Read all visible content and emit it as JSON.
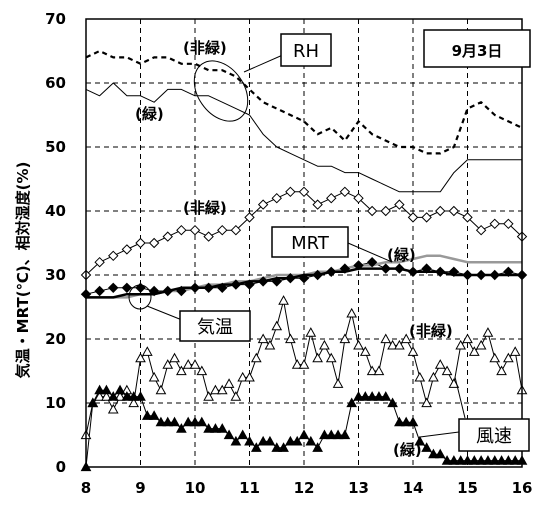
{
  "chart_data": {
    "type": "line",
    "title": "",
    "date_label": "9月3日",
    "xlabel": "",
    "ylabel": "気温・MRT(℃)、相対湿度(%)",
    "xlim": [
      8,
      16
    ],
    "ylim": [
      0,
      70
    ],
    "x_ticks": [
      8,
      9,
      10,
      11,
      12,
      13,
      14,
      15,
      16
    ],
    "y_ticks": [
      0,
      10,
      20,
      30,
      40,
      50,
      60,
      70
    ],
    "grid": "dashed",
    "callouts": {
      "rh": "RH",
      "mrt": "MRT",
      "air_temp": "気温",
      "wind": "風速"
    },
    "labels": {
      "non_green": "(非緑)",
      "green": "(緑)"
    },
    "series": [
      {
        "key": "rh_nongreen",
        "style": "dashed",
        "x": [
          8,
          8.25,
          8.5,
          8.75,
          9,
          9.25,
          9.5,
          9.75,
          10,
          10.25,
          10.5,
          10.75,
          11,
          11.25,
          11.5,
          11.75,
          12,
          12.25,
          12.5,
          12.75,
          13,
          13.25,
          13.5,
          13.75,
          14,
          14.25,
          14.5,
          14.75,
          15,
          15.25,
          15.5,
          15.75,
          16
        ],
        "y": [
          64,
          65,
          64,
          64,
          63,
          64,
          64,
          63,
          63,
          62,
          62,
          61,
          59,
          57,
          56,
          55,
          54,
          52,
          53,
          51,
          54,
          52,
          51,
          50,
          50,
          49,
          49,
          50,
          56,
          57,
          55,
          54,
          53
        ]
      },
      {
        "key": "rh_green",
        "style": "solid",
        "x": [
          8,
          8.25,
          8.5,
          8.75,
          9,
          9.25,
          9.5,
          9.75,
          10,
          10.25,
          10.5,
          10.75,
          11,
          11.25,
          11.5,
          11.75,
          12,
          12.25,
          12.5,
          12.75,
          13,
          13.25,
          13.5,
          13.75,
          14,
          14.25,
          14.5,
          14.75,
          15,
          15.25,
          15.5,
          15.75,
          16
        ],
        "y": [
          59,
          58,
          60,
          58,
          58,
          57,
          59,
          59,
          58,
          58,
          57,
          56,
          55,
          52,
          50,
          49,
          48,
          47,
          47,
          46,
          46,
          45,
          44,
          43,
          43,
          43,
          43,
          46,
          48,
          48,
          48,
          48,
          48
        ]
      },
      {
        "key": "mrt_nongreen",
        "style": "line-open-diamond",
        "x": [
          8,
          8.25,
          8.5,
          8.75,
          9,
          9.25,
          9.5,
          9.75,
          10,
          10.25,
          10.5,
          10.75,
          11,
          11.25,
          11.5,
          11.75,
          12,
          12.25,
          12.5,
          12.75,
          13,
          13.25,
          13.5,
          13.75,
          14,
          14.25,
          14.5,
          14.75,
          15,
          15.25,
          15.5,
          15.75,
          16
        ],
        "y": [
          30,
          32,
          33,
          34,
          35,
          35,
          36,
          37,
          37,
          36,
          37,
          37,
          39,
          41,
          42,
          43,
          43,
          41,
          42,
          43,
          42,
          40,
          40,
          41,
          39,
          39,
          40,
          40,
          39,
          37,
          38,
          38,
          36
        ]
      },
      {
        "key": "mrt_green",
        "style": "line-filled-diamond",
        "x": [
          8,
          8.25,
          8.5,
          8.75,
          9,
          9.25,
          9.5,
          9.75,
          10,
          10.25,
          10.5,
          10.75,
          11,
          11.25,
          11.5,
          11.75,
          12,
          12.25,
          12.5,
          12.75,
          13,
          13.25,
          13.5,
          13.75,
          14,
          14.25,
          14.5,
          14.75,
          15,
          15.25,
          15.5,
          15.75,
          16
        ],
        "y": [
          27,
          27.5,
          28,
          28,
          28,
          27.5,
          27.5,
          27.5,
          28,
          28,
          28,
          28.5,
          28.5,
          29,
          29,
          29.5,
          29.5,
          30,
          30.5,
          31,
          31.5,
          32,
          31,
          31,
          30.5,
          31,
          30.5,
          30.5,
          30,
          30,
          30,
          30.5,
          30
        ]
      },
      {
        "key": "air_temp_nongreen",
        "style": "gray",
        "x": [
          8,
          8.25,
          8.5,
          8.75,
          9,
          9.25,
          9.5,
          9.75,
          10,
          10.25,
          10.5,
          10.75,
          11,
          11.25,
          11.5,
          11.75,
          12,
          12.25,
          12.5,
          12.75,
          13,
          13.25,
          13.5,
          13.75,
          14,
          14.25,
          14.5,
          14.75,
          15,
          15.25,
          15.5,
          15.75,
          16
        ],
        "y": [
          26.5,
          26.5,
          26.5,
          26.5,
          27,
          27,
          27.5,
          27.5,
          28,
          28.5,
          28.5,
          29,
          29,
          29.5,
          30,
          30,
          30,
          30.5,
          30.5,
          31,
          31.5,
          31.5,
          32,
          32,
          32.5,
          33,
          33,
          32.5,
          32,
          32,
          32,
          32,
          32
        ]
      },
      {
        "key": "air_temp_green",
        "style": "black",
        "x": [
          8,
          8.25,
          8.5,
          8.75,
          9,
          9.25,
          9.5,
          9.75,
          10,
          10.25,
          10.5,
          10.75,
          11,
          11.25,
          11.5,
          11.75,
          12,
          12.25,
          12.5,
          12.75,
          13,
          13.25,
          13.5,
          13.75,
          14,
          14.25,
          14.5,
          14.75,
          15,
          15.25,
          15.5,
          15.75,
          16
        ],
        "y": [
          26.5,
          26.5,
          26.5,
          27,
          27,
          27,
          27.5,
          28,
          28,
          28,
          28.5,
          28.5,
          29,
          29,
          29.5,
          29.5,
          30,
          30,
          30.5,
          30.5,
          31,
          31,
          31,
          31,
          30.5,
          30.5,
          30.5,
          30,
          30,
          30,
          30,
          30,
          30
        ]
      },
      {
        "key": "wind_nongreen",
        "style": "line-open-triangle",
        "x": [
          8,
          8.125,
          8.25,
          8.375,
          8.5,
          8.625,
          8.75,
          8.875,
          9,
          9.125,
          9.25,
          9.375,
          9.5,
          9.625,
          9.75,
          9.875,
          10,
          10.125,
          10.25,
          10.375,
          10.5,
          10.625,
          10.75,
          10.875,
          11,
          11.125,
          11.25,
          11.375,
          11.5,
          11.625,
          11.75,
          11.875,
          12,
          12.125,
          12.25,
          12.375,
          12.5,
          12.625,
          12.75,
          12.875,
          13,
          13.125,
          13.25,
          13.375,
          13.5,
          13.625,
          13.75,
          13.875,
          14,
          14.125,
          14.25,
          14.375,
          14.5,
          14.625,
          14.75,
          14.875,
          15,
          15.125,
          15.25,
          15.375,
          15.5,
          15.625,
          15.75,
          15.875,
          16
        ],
        "y": [
          5,
          10,
          11,
          11,
          9,
          11,
          12,
          10,
          17,
          18,
          14,
          12,
          16,
          17,
          15,
          16,
          16,
          15,
          11,
          12,
          12,
          13,
          11,
          14,
          14,
          17,
          20,
          19,
          22,
          26,
          20,
          16,
          16,
          21,
          17,
          19,
          17,
          13,
          20,
          24,
          19,
          18,
          15,
          15,
          20,
          19,
          19,
          20,
          18,
          14,
          10,
          14,
          16,
          15,
          13,
          19,
          20,
          18,
          19,
          21,
          17,
          15,
          17,
          18,
          12
        ]
      },
      {
        "key": "wind_green",
        "style": "line-filled-triangle",
        "x": [
          8,
          8.125,
          8.25,
          8.375,
          8.5,
          8.625,
          8.75,
          8.875,
          9,
          9.125,
          9.25,
          9.375,
          9.5,
          9.625,
          9.75,
          9.875,
          10,
          10.125,
          10.25,
          10.375,
          10.5,
          10.625,
          10.75,
          10.875,
          11,
          11.125,
          11.25,
          11.375,
          11.5,
          11.625,
          11.75,
          11.875,
          12,
          12.125,
          12.25,
          12.375,
          12.5,
          12.625,
          12.75,
          12.875,
          13,
          13.125,
          13.25,
          13.375,
          13.5,
          13.625,
          13.75,
          13.875,
          14,
          14.125,
          14.25,
          14.375,
          14.5,
          14.625,
          14.75,
          14.875,
          15,
          15.125,
          15.25,
          15.375,
          15.5,
          15.625,
          15.75,
          15.875,
          16
        ],
        "y": [
          0,
          10,
          12,
          12,
          11,
          12,
          11,
          11,
          11,
          8,
          8,
          7,
          7,
          7,
          6,
          7,
          7,
          7,
          6,
          6,
          6,
          5,
          4,
          5,
          4,
          3,
          4,
          4,
          3,
          3,
          4,
          4,
          5,
          4,
          3,
          5,
          5,
          5,
          5,
          10,
          11,
          11,
          11,
          11,
          11,
          10,
          7,
          7,
          7,
          4,
          3,
          2,
          2,
          1,
          1,
          1,
          1,
          1,
          1,
          1,
          1,
          1,
          1,
          1,
          1
        ]
      }
    ]
  }
}
